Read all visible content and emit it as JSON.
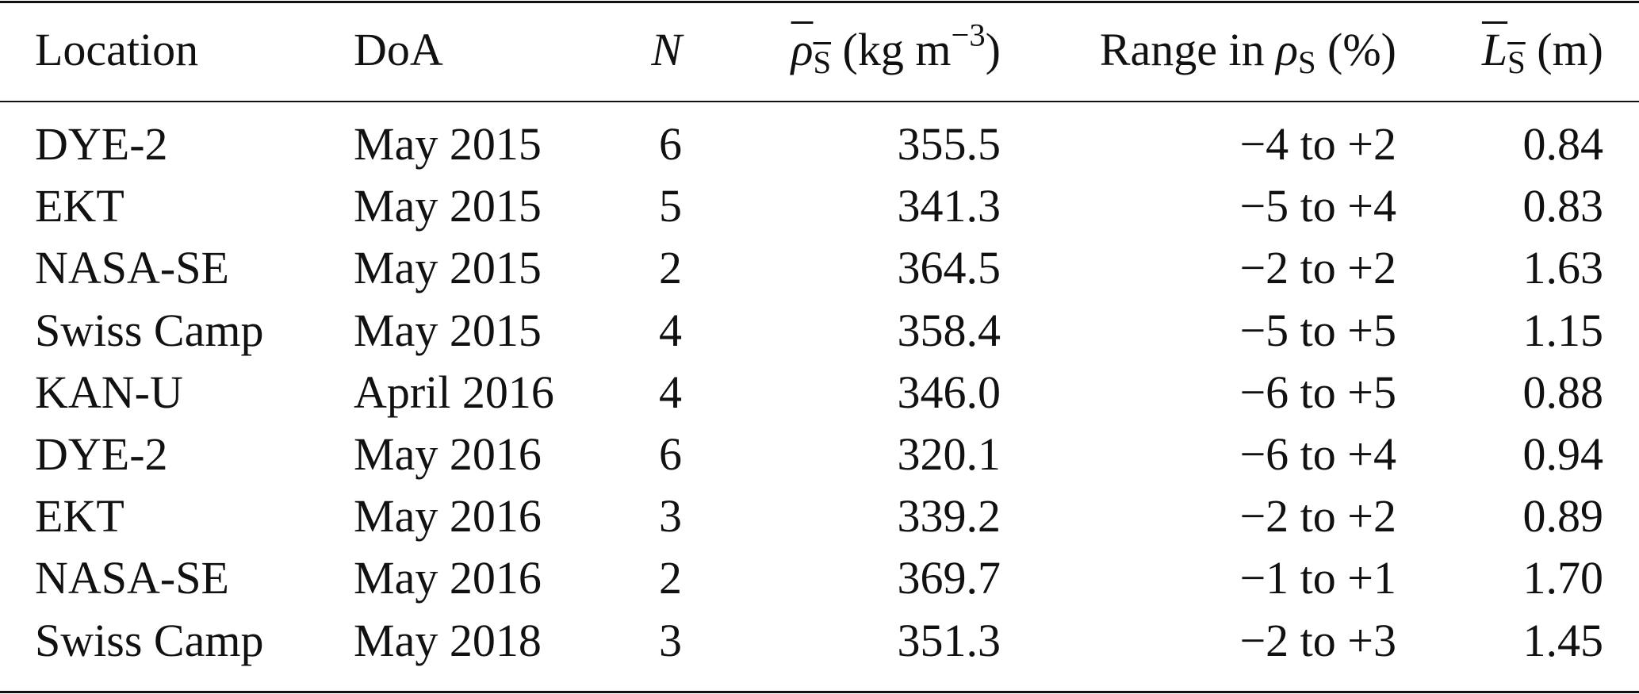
{
  "table": {
    "header": {
      "location": "Location",
      "doa": "DoA",
      "n": "N",
      "density": {
        "symbol": "ρ",
        "sub": "S",
        "unit": "(kg m",
        "exp": "−3",
        "close": ")"
      },
      "range": {
        "text": "Range in",
        "symbol": "ρ",
        "sub": "S",
        "unit": "(%)"
      },
      "length": {
        "symbol": "L",
        "sub": "S",
        "unit": "(m)"
      }
    },
    "rows": [
      [
        "DYE-2",
        "May 2015",
        "6",
        "355.5",
        "−4 to +2",
        "0.84"
      ],
      [
        "EKT",
        "May 2015",
        "5",
        "341.3",
        "−5 to +4",
        "0.83"
      ],
      [
        "NASA-SE",
        "May 2015",
        "2",
        "364.5",
        "−2 to +2",
        "1.63"
      ],
      [
        "Swiss Camp",
        "May 2015",
        "4",
        "358.4",
        "−5 to +5",
        "1.15"
      ],
      [
        "KAN-U",
        "April 2016",
        "4",
        "346.0",
        "−6 to +5",
        "0.88"
      ],
      [
        "DYE-2",
        "May 2016",
        "6",
        "320.1",
        "−6 to +4",
        "0.94"
      ],
      [
        "EKT",
        "May 2016",
        "3",
        "339.2",
        "−2 to +2",
        "0.89"
      ],
      [
        "NASA-SE",
        "May 2016",
        "2",
        "369.7",
        "−1 to +1",
        "1.70"
      ],
      [
        "Swiss Camp",
        "May 2018",
        "3",
        "351.3",
        "−2 to +3",
        "1.45"
      ]
    ]
  }
}
